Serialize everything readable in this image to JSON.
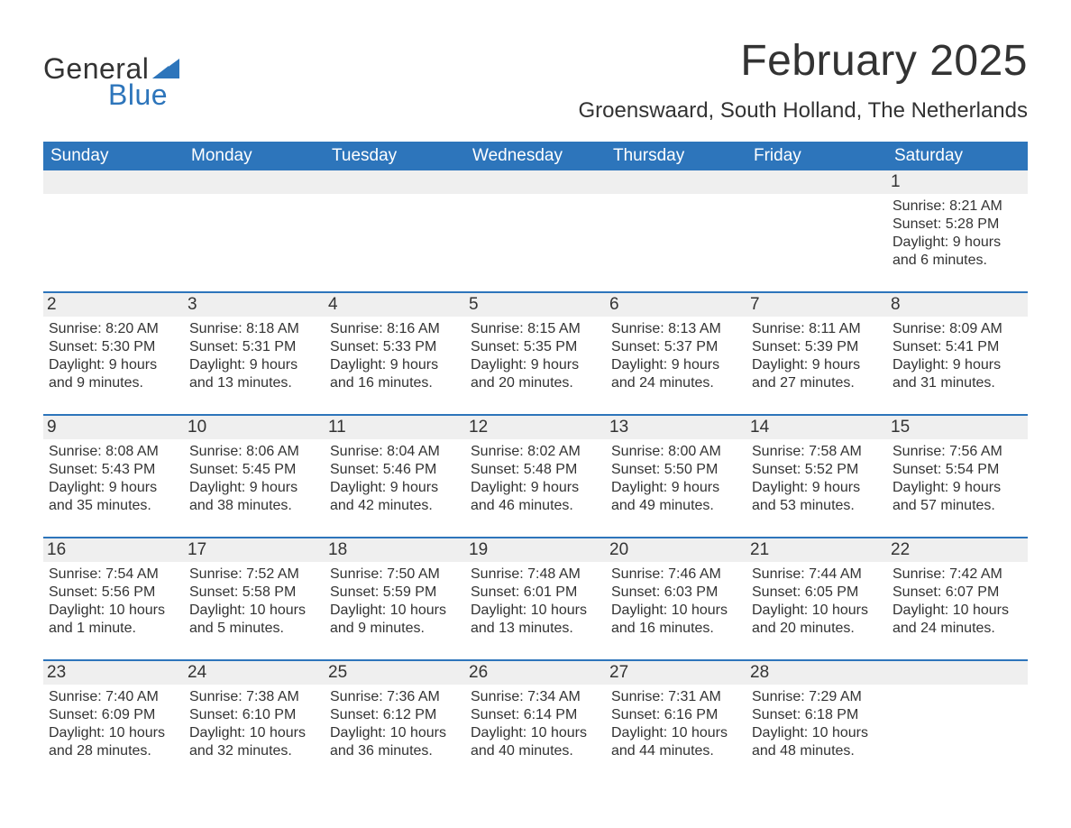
{
  "brand": {
    "part1": "General",
    "part2": "Blue",
    "text_color": "#333333",
    "accent_color": "#2d75bb"
  },
  "title": "February 2025",
  "location": "Groenswaard, South Holland, The Netherlands",
  "colors": {
    "header_bg": "#2d75bb",
    "header_text": "#ffffff",
    "daynum_bg": "#efefef",
    "text": "#333333",
    "row_divider": "#2d75bb",
    "background": "#ffffff"
  },
  "fonts": {
    "title_size": 48,
    "location_size": 24,
    "dayheader_size": 19,
    "daynum_size": 19,
    "detail_size": 16
  },
  "day_labels": [
    "Sunday",
    "Monday",
    "Tuesday",
    "Wednesday",
    "Thursday",
    "Friday",
    "Saturday"
  ],
  "weeks": [
    [
      {
        "empty": true
      },
      {
        "empty": true
      },
      {
        "empty": true
      },
      {
        "empty": true
      },
      {
        "empty": true
      },
      {
        "empty": true
      },
      {
        "n": "1",
        "sunrise": "Sunrise: 8:21 AM",
        "sunset": "Sunset: 5:28 PM",
        "day1": "Daylight: 9 hours",
        "day2": "and 6 minutes."
      }
    ],
    [
      {
        "n": "2",
        "sunrise": "Sunrise: 8:20 AM",
        "sunset": "Sunset: 5:30 PM",
        "day1": "Daylight: 9 hours",
        "day2": "and 9 minutes."
      },
      {
        "n": "3",
        "sunrise": "Sunrise: 8:18 AM",
        "sunset": "Sunset: 5:31 PM",
        "day1": "Daylight: 9 hours",
        "day2": "and 13 minutes."
      },
      {
        "n": "4",
        "sunrise": "Sunrise: 8:16 AM",
        "sunset": "Sunset: 5:33 PM",
        "day1": "Daylight: 9 hours",
        "day2": "and 16 minutes."
      },
      {
        "n": "5",
        "sunrise": "Sunrise: 8:15 AM",
        "sunset": "Sunset: 5:35 PM",
        "day1": "Daylight: 9 hours",
        "day2": "and 20 minutes."
      },
      {
        "n": "6",
        "sunrise": "Sunrise: 8:13 AM",
        "sunset": "Sunset: 5:37 PM",
        "day1": "Daylight: 9 hours",
        "day2": "and 24 minutes."
      },
      {
        "n": "7",
        "sunrise": "Sunrise: 8:11 AM",
        "sunset": "Sunset: 5:39 PM",
        "day1": "Daylight: 9 hours",
        "day2": "and 27 minutes."
      },
      {
        "n": "8",
        "sunrise": "Sunrise: 8:09 AM",
        "sunset": "Sunset: 5:41 PM",
        "day1": "Daylight: 9 hours",
        "day2": "and 31 minutes."
      }
    ],
    [
      {
        "n": "9",
        "sunrise": "Sunrise: 8:08 AM",
        "sunset": "Sunset: 5:43 PM",
        "day1": "Daylight: 9 hours",
        "day2": "and 35 minutes."
      },
      {
        "n": "10",
        "sunrise": "Sunrise: 8:06 AM",
        "sunset": "Sunset: 5:45 PM",
        "day1": "Daylight: 9 hours",
        "day2": "and 38 minutes."
      },
      {
        "n": "11",
        "sunrise": "Sunrise: 8:04 AM",
        "sunset": "Sunset: 5:46 PM",
        "day1": "Daylight: 9 hours",
        "day2": "and 42 minutes."
      },
      {
        "n": "12",
        "sunrise": "Sunrise: 8:02 AM",
        "sunset": "Sunset: 5:48 PM",
        "day1": "Daylight: 9 hours",
        "day2": "and 46 minutes."
      },
      {
        "n": "13",
        "sunrise": "Sunrise: 8:00 AM",
        "sunset": "Sunset: 5:50 PM",
        "day1": "Daylight: 9 hours",
        "day2": "and 49 minutes."
      },
      {
        "n": "14",
        "sunrise": "Sunrise: 7:58 AM",
        "sunset": "Sunset: 5:52 PM",
        "day1": "Daylight: 9 hours",
        "day2": "and 53 minutes."
      },
      {
        "n": "15",
        "sunrise": "Sunrise: 7:56 AM",
        "sunset": "Sunset: 5:54 PM",
        "day1": "Daylight: 9 hours",
        "day2": "and 57 minutes."
      }
    ],
    [
      {
        "n": "16",
        "sunrise": "Sunrise: 7:54 AM",
        "sunset": "Sunset: 5:56 PM",
        "day1": "Daylight: 10 hours",
        "day2": "and 1 minute."
      },
      {
        "n": "17",
        "sunrise": "Sunrise: 7:52 AM",
        "sunset": "Sunset: 5:58 PM",
        "day1": "Daylight: 10 hours",
        "day2": "and 5 minutes."
      },
      {
        "n": "18",
        "sunrise": "Sunrise: 7:50 AM",
        "sunset": "Sunset: 5:59 PM",
        "day1": "Daylight: 10 hours",
        "day2": "and 9 minutes."
      },
      {
        "n": "19",
        "sunrise": "Sunrise: 7:48 AM",
        "sunset": "Sunset: 6:01 PM",
        "day1": "Daylight: 10 hours",
        "day2": "and 13 minutes."
      },
      {
        "n": "20",
        "sunrise": "Sunrise: 7:46 AM",
        "sunset": "Sunset: 6:03 PM",
        "day1": "Daylight: 10 hours",
        "day2": "and 16 minutes."
      },
      {
        "n": "21",
        "sunrise": "Sunrise: 7:44 AM",
        "sunset": "Sunset: 6:05 PM",
        "day1": "Daylight: 10 hours",
        "day2": "and 20 minutes."
      },
      {
        "n": "22",
        "sunrise": "Sunrise: 7:42 AM",
        "sunset": "Sunset: 6:07 PM",
        "day1": "Daylight: 10 hours",
        "day2": "and 24 minutes."
      }
    ],
    [
      {
        "n": "23",
        "sunrise": "Sunrise: 7:40 AM",
        "sunset": "Sunset: 6:09 PM",
        "day1": "Daylight: 10 hours",
        "day2": "and 28 minutes."
      },
      {
        "n": "24",
        "sunrise": "Sunrise: 7:38 AM",
        "sunset": "Sunset: 6:10 PM",
        "day1": "Daylight: 10 hours",
        "day2": "and 32 minutes."
      },
      {
        "n": "25",
        "sunrise": "Sunrise: 7:36 AM",
        "sunset": "Sunset: 6:12 PM",
        "day1": "Daylight: 10 hours",
        "day2": "and 36 minutes."
      },
      {
        "n": "26",
        "sunrise": "Sunrise: 7:34 AM",
        "sunset": "Sunset: 6:14 PM",
        "day1": "Daylight: 10 hours",
        "day2": "and 40 minutes."
      },
      {
        "n": "27",
        "sunrise": "Sunrise: 7:31 AM",
        "sunset": "Sunset: 6:16 PM",
        "day1": "Daylight: 10 hours",
        "day2": "and 44 minutes."
      },
      {
        "n": "28",
        "sunrise": "Sunrise: 7:29 AM",
        "sunset": "Sunset: 6:18 PM",
        "day1": "Daylight: 10 hours",
        "day2": "and 48 minutes."
      },
      {
        "empty": true
      }
    ]
  ]
}
